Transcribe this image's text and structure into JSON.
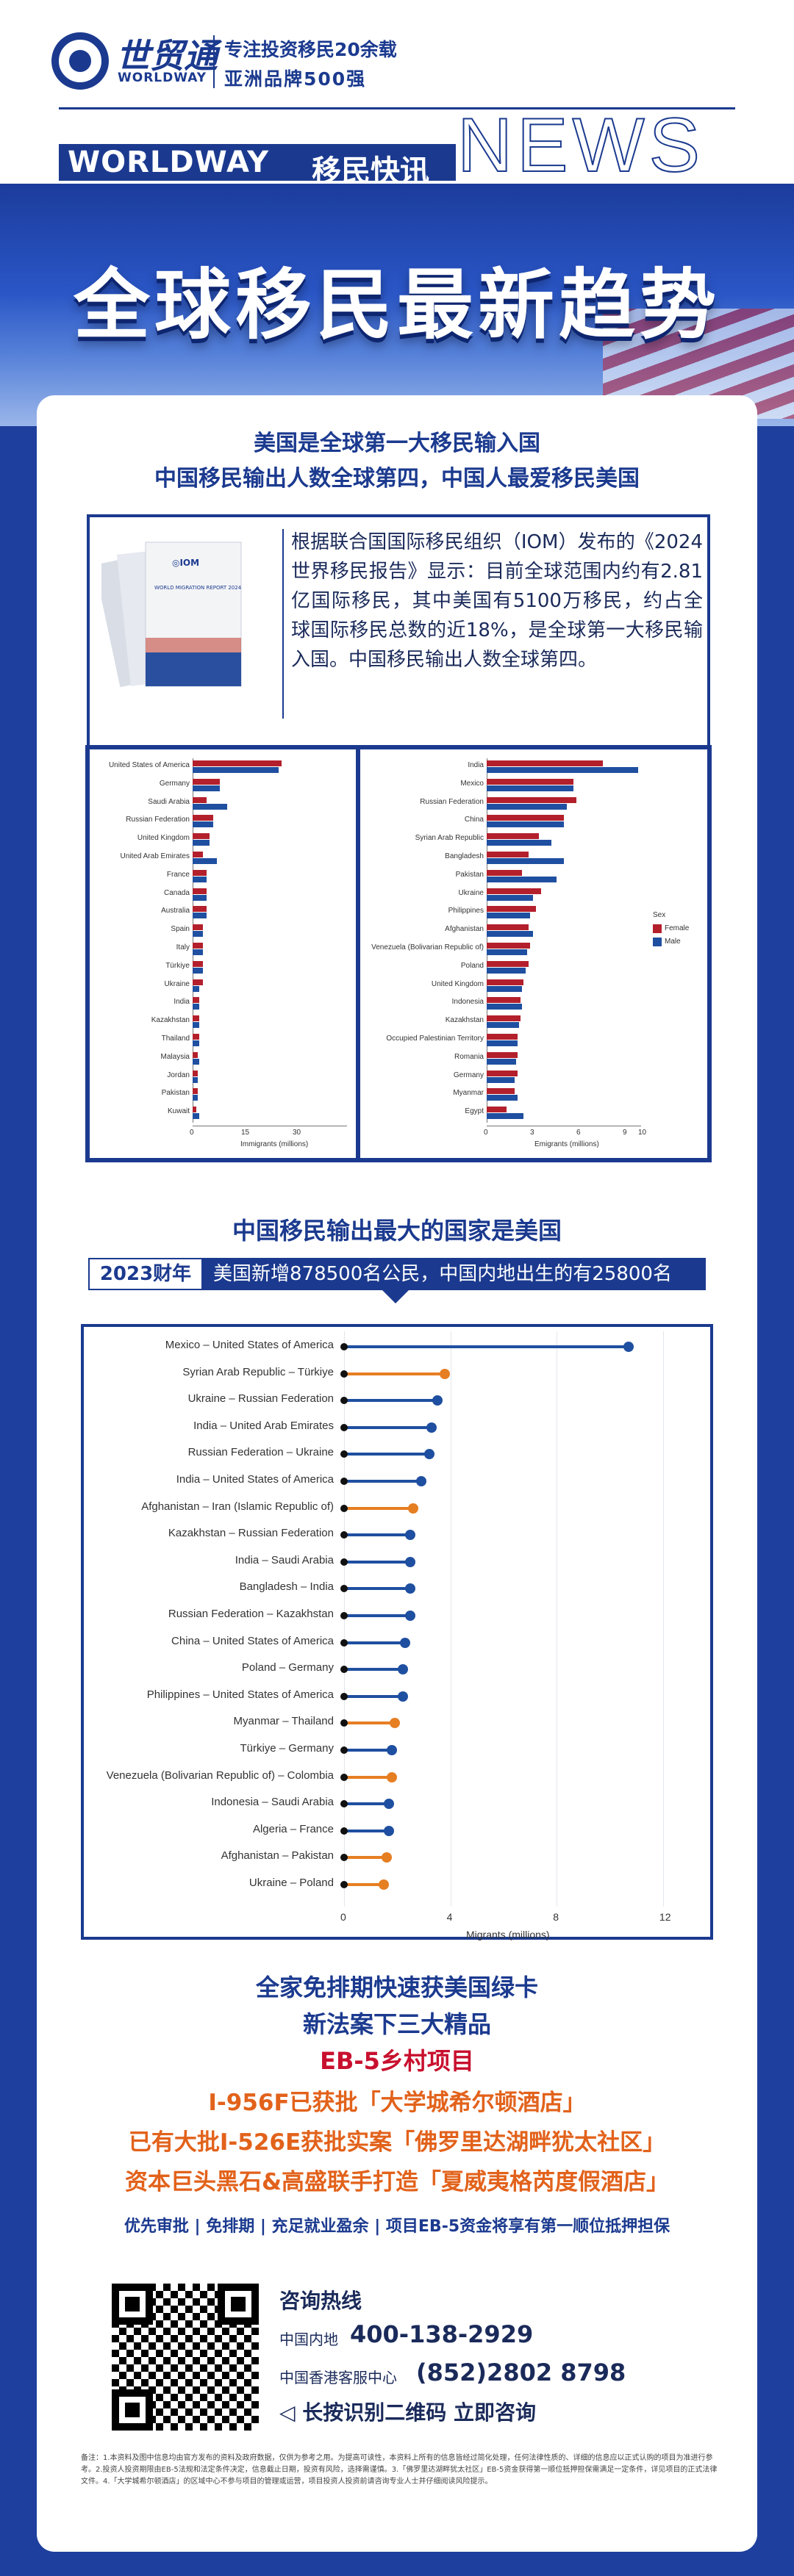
{
  "header": {
    "logo_cn": "世贸通",
    "logo_en": "WORLDWAY",
    "slogan_1": "专注投资移民20余载",
    "slogan_2": "亚洲品牌500强",
    "news_en": "WORLDWAY",
    "news_cn": "移民快讯",
    "news_big": "NEWS"
  },
  "banner": {
    "title": "全球移民最新趋势"
  },
  "section1": {
    "heading_1": "美国是全球第一大移民输入国",
    "heading_2": "中国移民输出人数全球第四，中国人最爱移民美国",
    "book_logo": "◎IOM",
    "book_title": "WORLD MIGRATION REPORT 2024",
    "paragraph": "根据联合国国际移民组织（IOM）发布的《2024世界移民报告》显示：目前全球范围内约有2.81亿国际移民，其中美国有5100万移民，约占全球国际移民总数的近18%，是全球第一大移民输入国。中国移民输出人数全球第四。"
  },
  "chart_data": [
    {
      "type": "bar",
      "orientation": "horizontal",
      "xlabel": "Immigrants (millions)",
      "xticks": [
        0,
        15,
        30
      ],
      "xlim": [
        0,
        45
      ],
      "categories": [
        "United States of America",
        "Germany",
        "Saudi Arabia",
        "Russian Federation",
        "United Kingdom",
        "United Arab Emirates",
        "France",
        "Canada",
        "Australia",
        "Spain",
        "Italy",
        "Türkiye",
        "Ukraine",
        "India",
        "Kazakhstan",
        "Thailand",
        "Malaysia",
        "Jordan",
        "Pakistan",
        "Kuwait"
      ],
      "series": [
        {
          "name": "Female",
          "color": "#b3202c",
          "values": [
            26,
            8,
            4,
            6,
            5,
            3,
            4,
            4,
            4,
            3,
            3,
            3,
            3,
            2,
            2,
            2,
            1.5,
            1.5,
            1.5,
            1
          ]
        },
        {
          "name": "Male",
          "color": "#1f4fa0",
          "values": [
            25,
            8,
            10,
            6,
            5,
            7,
            4,
            4,
            4,
            3,
            3,
            3,
            2,
            2,
            2,
            2,
            2,
            1.5,
            1.5,
            2
          ]
        }
      ]
    },
    {
      "type": "bar",
      "orientation": "horizontal",
      "xlabel": "Emigrants (millions)",
      "xticks": [
        0,
        3,
        6,
        9,
        10
      ],
      "xlim": [
        0,
        10
      ],
      "legend": {
        "title": "Sex",
        "position": "right",
        "entries": [
          "Female",
          "Male"
        ]
      },
      "categories": [
        "India",
        "Mexico",
        "Russian Federation",
        "China",
        "Syrian Arab Republic",
        "Bangladesh",
        "Pakistan",
        "Ukraine",
        "Philippines",
        "Afghanistan",
        "Venezuela (Bolivarian Republic of)",
        "Poland",
        "United Kingdom",
        "Indonesia",
        "Kazakhstan",
        "Occupied Palestinian Territory",
        "Romania",
        "Germany",
        "Myanmar",
        "Egypt"
      ],
      "series": [
        {
          "name": "Female",
          "color": "#b3202c",
          "values": [
            7.5,
            5.6,
            5.8,
            5,
            3.4,
            2.7,
            2.3,
            3.5,
            3.2,
            2.7,
            2.8,
            2.7,
            2.4,
            2.2,
            2.2,
            2,
            2,
            2,
            1.8,
            1.3
          ]
        },
        {
          "name": "Male",
          "color": "#1f4fa0",
          "values": [
            9.8,
            5.6,
            5.2,
            5,
            4.2,
            5,
            4.5,
            3,
            2.8,
            3,
            2.6,
            2.5,
            2.3,
            2.3,
            2.1,
            2,
            1.9,
            1.8,
            2,
            2.4
          ]
        }
      ]
    },
    {
      "type": "lollipop",
      "xlabel": "Migrants (millions)",
      "xticks": [
        0,
        4,
        8,
        12
      ],
      "xlim": [
        0,
        12.5
      ],
      "categories": [
        "Mexico – United States of America",
        "Syrian Arab Republic – Türkiye",
        "Ukraine – Russian Federation",
        "India – United Arab Emirates",
        "Russian Federation – Ukraine",
        "India – United States of America",
        "Afghanistan – Iran (Islamic Republic of)",
        "Kazakhstan – Russian Federation",
        "India – Saudi Arabia",
        "Bangladesh – India",
        "Russian Federation – Kazakhstan",
        "China – United States of America",
        "Poland – Germany",
        "Philippines – United States of America",
        "Myanmar – Thailand",
        "Türkiye – Germany",
        "Venezuela (Bolivarian Republic of) – Colombia",
        "Indonesia – Saudi Arabia",
        "Algeria – France",
        "Afghanistan – Pakistan",
        "Ukraine – Poland"
      ],
      "values": [
        10.7,
        3.8,
        3.5,
        3.3,
        3.2,
        2.9,
        2.6,
        2.5,
        2.5,
        2.5,
        2.5,
        2.3,
        2.2,
        2.2,
        1.9,
        1.8,
        1.8,
        1.7,
        1.7,
        1.6,
        1.5
      ],
      "colors": [
        "#1f4fa0",
        "#e67e22",
        "#1f4fa0",
        "#1f4fa0",
        "#1f4fa0",
        "#1f4fa0",
        "#e67e22",
        "#1f4fa0",
        "#1f4fa0",
        "#1f4fa0",
        "#1f4fa0",
        "#1f4fa0",
        "#1f4fa0",
        "#1f4fa0",
        "#e67e22",
        "#1f4fa0",
        "#e67e22",
        "#1f4fa0",
        "#1f4fa0",
        "#e67e22",
        "#e67e22"
      ]
    }
  ],
  "section2": {
    "heading": "中国移民输出最大的国家是美国",
    "fy_tag": "2023财年",
    "fy_text": "美国新增878500名公民，中国内地出生的有25800名"
  },
  "promo": {
    "line_1": "全家免排期快速获美国绿卡",
    "line_2": "新法案下三大精品",
    "line_3": "EB-5乡村项目",
    "line_4": "I-956F已获批「大学城希尔顿酒店」",
    "line_5": "已有大批I-526E获批实案「佛罗里达湖畔犹太社区」",
    "line_6": "资本巨头黑石&高盛联手打造「夏威夷格芮度假酒店」",
    "line_7": "优先审批 | 免排期 | 充足就业盈余 | 项目EB-5资金将享有第一顺位抵押担保"
  },
  "contact": {
    "title": "咨询热线",
    "mainland_label": "中国内地",
    "mainland_phone": "400-138-2929",
    "hk_label": "中国香港客服中心",
    "hk_phone": "(852)2802 8798",
    "qr_hint": "◁ 长按识别二维码 立即咨询"
  },
  "footnote": "备注：1.本资料及图中信息均由官方发布的资料及政府数据，仅供为参考之用。为提高可读性，本资料上所有的信息皆经过简化处理，任何法律性质的、详细的信息应以正式认购的项目为准进行参考。2.投资人投资期限由EB-5法规和法定条件决定，信息截止日期，投资有风险，选择需谨慎。3.「佛罗里达湖畔犹太社区」EB-5资金获得第一顺位抵押担保需满足一定条件，详见项目的正式法律文件。4.「大学城希尔顿酒店」的区域中心不参与项目的管理或运营，项目投资人投资前请咨询专业人士并仔细阅读风险提示。"
}
